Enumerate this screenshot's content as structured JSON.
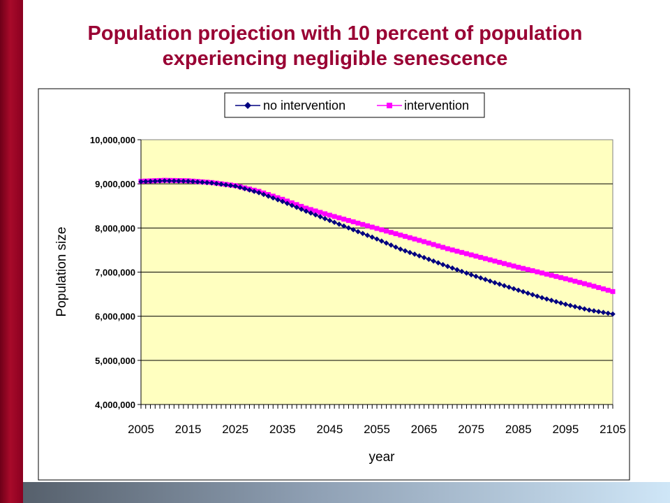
{
  "title": "Population projection with 10 percent of population experiencing negligible senescence",
  "chart_data": {
    "type": "line",
    "xlabel": "year",
    "ylabel": "Population size",
    "xlim": [
      2005,
      2105
    ],
    "ylim": [
      4000000,
      10000000
    ],
    "yticks": [
      4000000,
      5000000,
      6000000,
      7000000,
      8000000,
      9000000,
      10000000
    ],
    "ytick_labels": [
      "4,000,000",
      "5,000,000",
      "6,000,000",
      "7,000,000",
      "8,000,000",
      "9,000,000",
      "10,000,000"
    ],
    "xticks": [
      2005,
      2015,
      2025,
      2035,
      2045,
      2055,
      2065,
      2075,
      2085,
      2095,
      2105
    ],
    "xtick_labels": [
      "2005",
      "2015",
      "2025",
      "2035",
      "2045",
      "2055",
      "2065",
      "2075",
      "2085",
      "2095",
      "2105"
    ],
    "grid": "horizontal",
    "legend_position": "top-center",
    "plot_background": "#ffffc0",
    "x": [
      2005,
      2010,
      2015,
      2020,
      2025,
      2030,
      2035,
      2040,
      2045,
      2050,
      2055,
      2060,
      2065,
      2070,
      2075,
      2080,
      2085,
      2090,
      2095,
      2100,
      2105
    ],
    "series": [
      {
        "name": "no intervention",
        "color": "#000080",
        "marker": "diamond",
        "values": [
          9050000,
          9070000,
          9060000,
          9020000,
          8950000,
          8800000,
          8600000,
          8380000,
          8170000,
          7960000,
          7750000,
          7520000,
          7330000,
          7130000,
          6940000,
          6760000,
          6590000,
          6420000,
          6270000,
          6140000,
          6050000
        ]
      },
      {
        "name": "intervention",
        "color": "#ff00ff",
        "marker": "square",
        "values": [
          9060000,
          9080000,
          9070000,
          9030000,
          8960000,
          8830000,
          8650000,
          8450000,
          8290000,
          8140000,
          7990000,
          7840000,
          7690000,
          7530000,
          7390000,
          7250000,
          7110000,
          6980000,
          6850000,
          6710000,
          6560000
        ]
      }
    ]
  }
}
